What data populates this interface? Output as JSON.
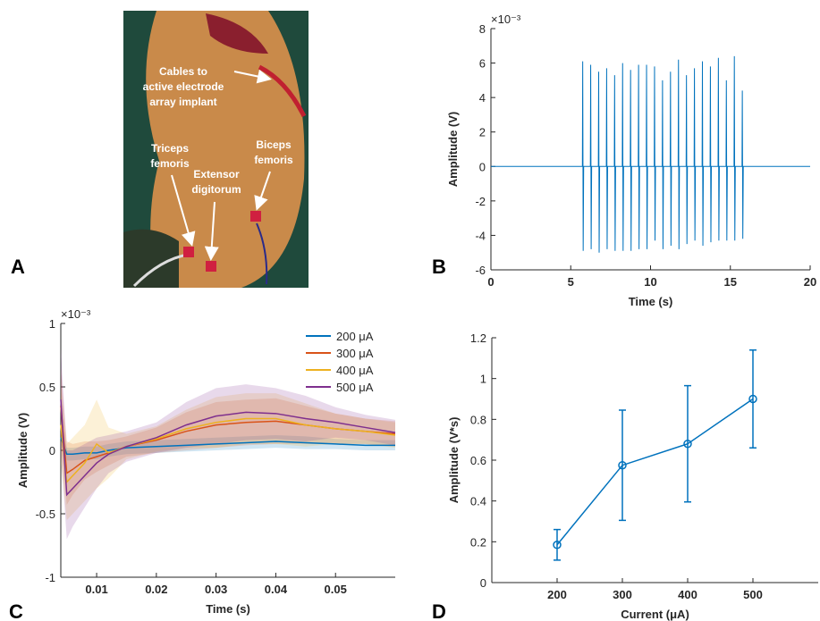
{
  "figure": {
    "panel_labels": [
      "A",
      "B",
      "C",
      "D"
    ],
    "photo_annotations": [
      {
        "lines": [
          "Cables to",
          "active electrode",
          "array implant"
        ]
      },
      {
        "lines": [
          "Triceps",
          "femoris"
        ]
      },
      {
        "lines": [
          "Extensor",
          "digitorum"
        ]
      },
      {
        "lines": [
          "Biceps",
          "femoris"
        ]
      }
    ]
  },
  "chart_data": [
    {
      "type": "line",
      "x_label": "Time (s)",
      "y_label": "Amplitude (V)",
      "y_exponent_label": "×10⁻³",
      "xlim": [
        0,
        20
      ],
      "ylim": [
        -6,
        8
      ],
      "xticks": [
        0,
        5,
        10,
        15,
        20
      ],
      "yticks": [
        -6,
        -4,
        -2,
        0,
        2,
        4,
        6,
        8
      ],
      "color": "#0072bd",
      "x": [
        0,
        5.73,
        5.75,
        5.78,
        5.81,
        6.23,
        6.25,
        6.28,
        6.31,
        6.73,
        6.75,
        6.78,
        6.81,
        7.23,
        7.25,
        7.28,
        7.31,
        7.73,
        7.75,
        7.78,
        7.81,
        8.23,
        8.25,
        8.28,
        8.31,
        8.73,
        8.75,
        8.78,
        8.81,
        9.23,
        9.25,
        9.28,
        9.31,
        9.73,
        9.75,
        9.78,
        9.81,
        10.23,
        10.25,
        10.28,
        10.31,
        10.73,
        10.75,
        10.78,
        10.81,
        11.23,
        11.25,
        11.28,
        11.31,
        11.73,
        11.75,
        11.78,
        11.81,
        12.23,
        12.25,
        12.28,
        12.31,
        12.73,
        12.75,
        12.78,
        12.81,
        13.23,
        13.25,
        13.28,
        13.31,
        13.73,
        13.75,
        13.78,
        13.81,
        14.23,
        14.25,
        14.28,
        14.31,
        14.73,
        14.75,
        14.78,
        14.81,
        15.23,
        15.25,
        15.28,
        15.31,
        15.73,
        15.75,
        15.78,
        15.81,
        20
      ],
      "values": [
        0,
        0,
        6.1,
        -4.9,
        0,
        0,
        5.9,
        -4.8,
        0,
        0,
        5.5,
        -5.0,
        0,
        0,
        5.7,
        -4.8,
        0,
        0,
        5.3,
        -4.9,
        0,
        0,
        6.0,
        -4.9,
        0,
        0,
        5.6,
        -4.9,
        0,
        0,
        5.9,
        -4.8,
        0,
        0,
        5.9,
        -4.8,
        0,
        0,
        5.8,
        -4.3,
        0,
        0,
        5.0,
        -4.8,
        0,
        0,
        5.5,
        -4.6,
        0,
        0,
        6.2,
        -4.8,
        0,
        0,
        5.3,
        -4.5,
        0,
        0,
        5.7,
        -4.3,
        0,
        0,
        6.1,
        -4.6,
        0,
        0,
        5.8,
        -4.4,
        0,
        0,
        6.3,
        -4.3,
        0,
        0,
        5.0,
        -4.3,
        0,
        0,
        6.4,
        -4.3,
        0,
        0,
        4.4,
        -4.2,
        0,
        0
      ]
    },
    {
      "type": "line",
      "x_label": "Time (s)",
      "y_label": "Amplitude (V)",
      "y_exponent_label": "×10⁻³",
      "xlim": [
        0.004,
        0.06
      ],
      "ylim": [
        -1,
        1
      ],
      "xticks": [
        0.01,
        0.02,
        0.03,
        0.04,
        0.05
      ],
      "yticks": [
        -1,
        -0.5,
        0,
        0.5,
        1
      ],
      "x": [
        0.004,
        0.005,
        0.006,
        0.008,
        0.01,
        0.012,
        0.015,
        0.02,
        0.025,
        0.03,
        0.035,
        0.04,
        0.045,
        0.05,
        0.055,
        0.06
      ],
      "series": [
        {
          "name": "200 μA",
          "color": "#0072bd",
          "values": [
            0.1,
            -0.03,
            -0.03,
            -0.02,
            -0.02,
            0,
            0.02,
            0.03,
            0.04,
            0.05,
            0.06,
            0.07,
            0.06,
            0.05,
            0.04,
            0.04
          ],
          "error": [
            0.05,
            0.05,
            0.05,
            0.05,
            0.05,
            0.05,
            0.05,
            0.05,
            0.05,
            0.05,
            0.05,
            0.05,
            0.05,
            0.04,
            0.04,
            0.04
          ]
        },
        {
          "name": "300 μA",
          "color": "#d95319",
          "values": [
            0.35,
            -0.18,
            -0.15,
            -0.08,
            -0.05,
            -0.02,
            0.03,
            0.08,
            0.15,
            0.2,
            0.22,
            0.23,
            0.2,
            0.17,
            0.15,
            0.13
          ],
          "error": [
            0.3,
            0.25,
            0.2,
            0.15,
            0.12,
            0.1,
            0.08,
            0.1,
            0.15,
            0.18,
            0.18,
            0.18,
            0.15,
            0.12,
            0.1,
            0.1
          ]
        },
        {
          "name": "400 μA",
          "color": "#edb120",
          "values": [
            0.2,
            -0.25,
            -0.2,
            -0.1,
            0.05,
            -0.02,
            0.03,
            0.09,
            0.17,
            0.22,
            0.25,
            0.25,
            0.2,
            0.17,
            0.15,
            0.12
          ],
          "error": [
            0.3,
            0.3,
            0.3,
            0.3,
            0.35,
            0.2,
            0.1,
            0.1,
            0.15,
            0.2,
            0.2,
            0.2,
            0.17,
            0.12,
            0.1,
            0.1
          ]
        },
        {
          "name": "500 μA",
          "color": "#7e2f8e",
          "values": [
            0.4,
            -0.35,
            -0.3,
            -0.2,
            -0.1,
            -0.03,
            0.03,
            0.1,
            0.2,
            0.27,
            0.3,
            0.29,
            0.25,
            0.22,
            0.18,
            0.14
          ],
          "error": [
            0.4,
            0.35,
            0.3,
            0.25,
            0.2,
            0.15,
            0.12,
            0.12,
            0.18,
            0.22,
            0.22,
            0.2,
            0.18,
            0.12,
            0.1,
            0.1
          ]
        }
      ],
      "legend": "upper right"
    },
    {
      "type": "errorbar",
      "x_label": "Current (μA)",
      "y_label": "Amplitude (V*s)",
      "xlim": [
        100,
        600
      ],
      "ylim": [
        0,
        1.2
      ],
      "xticks": [
        200,
        300,
        400,
        500
      ],
      "yticks": [
        0,
        0.2,
        0.4,
        0.6,
        0.8,
        1,
        1.2
      ],
      "color": "#0072bd",
      "x": [
        200,
        300,
        400,
        500
      ],
      "values": [
        0.185,
        0.575,
        0.68,
        0.9
      ],
      "errors": [
        0.075,
        0.27,
        0.285,
        0.24
      ]
    }
  ]
}
